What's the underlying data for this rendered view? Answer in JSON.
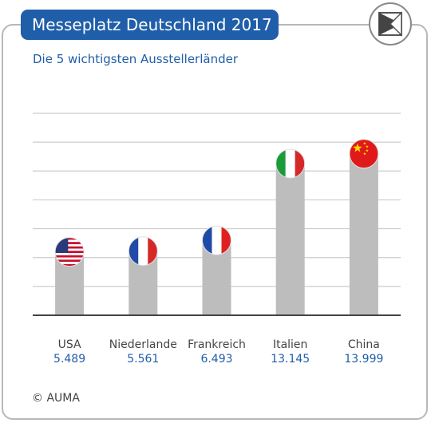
{
  "title": "Messeplatz Deutschland 2017",
  "subtitle": "Die 5 wichtigsten Ausstellerländer",
  "copyright": "© AUMA",
  "colors": {
    "accent": "#1f5ea9",
    "bar": "#bdbdbd",
    "grid": "#cccccc",
    "axis": "#444444",
    "value": "#1f5ea9"
  },
  "chart_data": {
    "type": "bar",
    "categories": [
      "USA",
      "Niederlande",
      "Frankreich",
      "Italien",
      "China"
    ],
    "value_labels": [
      "5.489",
      "5.561",
      "6.493",
      "13.145",
      "13.999"
    ],
    "values": [
      5489,
      5561,
      6493,
      13145,
      13999
    ],
    "flags": [
      "us-flag",
      "nl-flag",
      "fr-flag",
      "it-flag",
      "cn-flag"
    ],
    "title": "",
    "xlabel": "",
    "ylabel": "",
    "ylim": [
      0,
      17500
    ],
    "grid": true,
    "legend": "none"
  }
}
